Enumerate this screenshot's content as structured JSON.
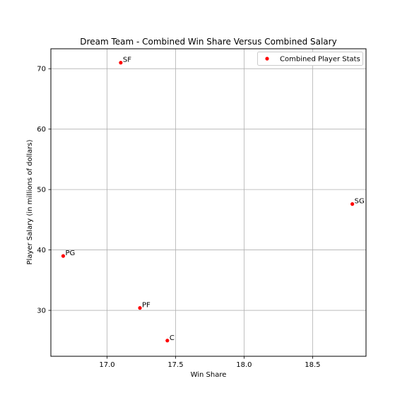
{
  "chart_data": {
    "type": "scatter",
    "title": "Dream Team - Combined Win Share Versus Combined Salary",
    "xlabel": "Win Share",
    "ylabel": "Player Salary (in millions of dollars)",
    "xlim": [
      16.59,
      18.89
    ],
    "ylim": [
      22.4,
      73.3
    ],
    "xticks": [
      17.0,
      17.5,
      18.0,
      18.5
    ],
    "xtick_labels": [
      "17.0",
      "17.5",
      "18.0",
      "18.5"
    ],
    "yticks": [
      30,
      40,
      50,
      60,
      70
    ],
    "ytick_labels": [
      "30",
      "40",
      "50",
      "60",
      "70"
    ],
    "grid": true,
    "legend_position": "top-right",
    "series": [
      {
        "name": "Combined Player Stats",
        "color": "#ff0000",
        "points": [
          {
            "label": "SF",
            "x": 17.1,
            "y": 71.0
          },
          {
            "label": "SG",
            "x": 18.79,
            "y": 47.6
          },
          {
            "label": "PG",
            "x": 16.68,
            "y": 39.0
          },
          {
            "label": "PF",
            "x": 17.24,
            "y": 30.4
          },
          {
            "label": "C",
            "x": 17.44,
            "y": 25.0
          }
        ]
      }
    ]
  }
}
